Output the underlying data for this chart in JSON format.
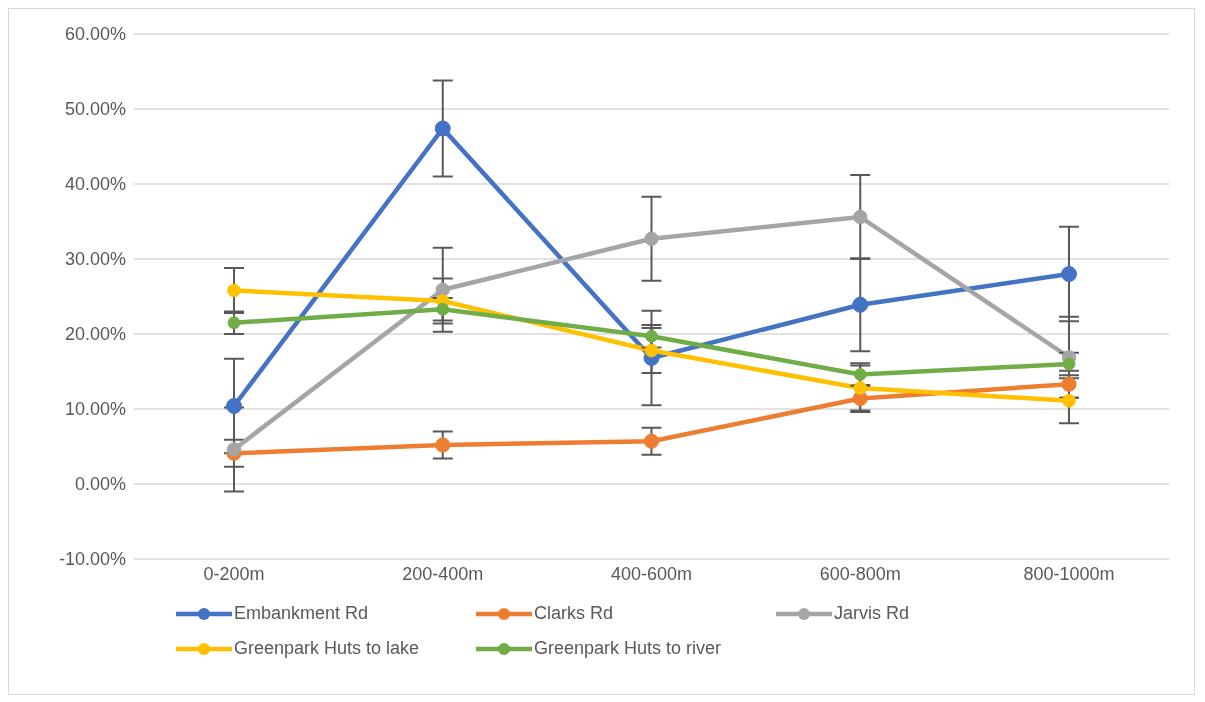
{
  "chart_data": {
    "type": "line",
    "categories": [
      "0-200m",
      "200-400m",
      "400-600m",
      "600-800m",
      "800-1000m"
    ],
    "series": [
      {
        "name": "Embankment Rd",
        "color": "#4472c4",
        "values": [
          10.4,
          47.4,
          16.8,
          23.9,
          28.0
        ],
        "errors": [
          6.3,
          6.4,
          6.3,
          6.2,
          6.3
        ]
      },
      {
        "name": "Clarks Rd",
        "color": "#ed7d31",
        "values": [
          4.1,
          5.2,
          5.7,
          11.4,
          13.3
        ],
        "errors": [
          1.8,
          1.8,
          1.8,
          1.8,
          1.8
        ]
      },
      {
        "name": "Jarvis Rd",
        "color": "#a5a5a5",
        "values": [
          4.6,
          25.9,
          32.7,
          35.6,
          16.9
        ],
        "errors": [
          5.6,
          5.6,
          5.6,
          5.6,
          5.4
        ]
      },
      {
        "name": "Greenpark Huts to lake",
        "color": "#ffc000",
        "values": [
          25.8,
          24.4,
          17.8,
          12.8,
          11.1
        ],
        "errors": [
          3.0,
          3.0,
          3.0,
          3.0,
          3.0
        ]
      },
      {
        "name": "Greenpark Huts to river",
        "color": "#70ad47",
        "values": [
          21.5,
          23.3,
          19.7,
          14.6,
          16.0
        ],
        "errors": [
          1.5,
          1.5,
          1.5,
          1.5,
          1.5
        ]
      }
    ],
    "ylim": [
      -10,
      60
    ],
    "yticks": [
      {
        "value": -10,
        "label": "-10.00%"
      },
      {
        "value": 0,
        "label": "0.00%"
      },
      {
        "value": 10,
        "label": "10.00%"
      },
      {
        "value": 20,
        "label": "20.00%"
      },
      {
        "value": 30,
        "label": "30.00%"
      },
      {
        "value": 40,
        "label": "40.00%"
      },
      {
        "value": 50,
        "label": "50.00%"
      },
      {
        "value": 60,
        "label": "60.00%"
      }
    ],
    "grid": "y",
    "legend": "bottom",
    "marker": "circle",
    "line_style": "solid"
  }
}
